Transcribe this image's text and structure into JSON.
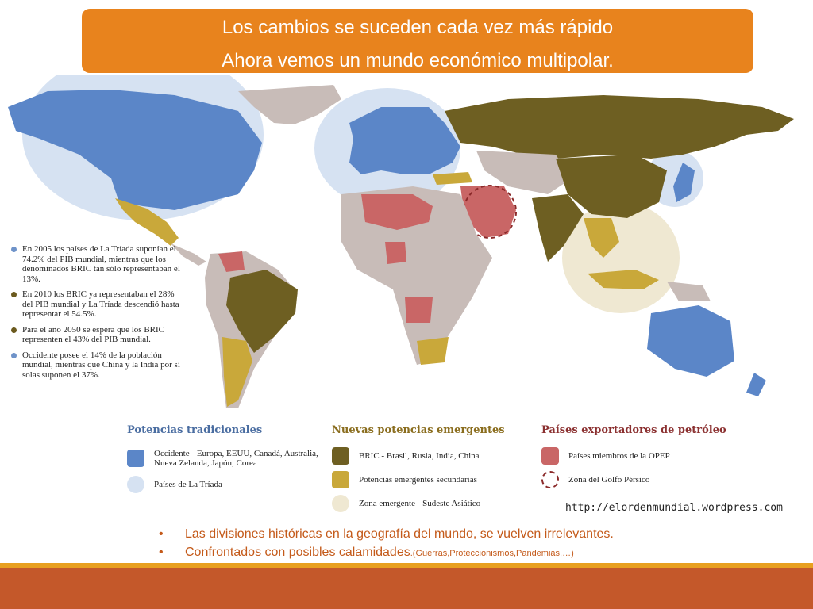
{
  "title": {
    "line1": "Los cambios se suceden cada vez más rápido",
    "line2": "Ahora vemos un mundo económico multipolar."
  },
  "notes": [
    {
      "text": "En 2005 los países de La Tríada suponían el 74.2% del PIB mundial, mientras que los denominados BRIC tan sólo representaban el 13%.",
      "color": "#6f93c9"
    },
    {
      "text": "En 2010 los BRIC ya representaban el 28% del PIB mundial y La Tríada descendió hasta representar el 54.5%.",
      "color": "#6b5a1e"
    },
    {
      "text": "Para el año 2050 se espera que los BRIC representen el 43% del PIB mundial.",
      "color": "#6b5a1e"
    },
    {
      "text": "Occidente posee el 14% de la población mundial, mientras que China y la India por sí solas suponen el 37%.",
      "color": "#6f93c9"
    }
  ],
  "legend": {
    "traditional": {
      "heading": "Potencias tradicionales",
      "items": [
        {
          "label": "Occidente - Europa, EEUU, Canadá, Australia, Nueva Zelanda, Japón, Corea",
          "color": "#5b86c8"
        },
        {
          "label": "Países de La Tríada",
          "color": "#d6e2f2"
        }
      ]
    },
    "emerging": {
      "heading": "Nuevas potencias emergentes",
      "items": [
        {
          "label": "BRIC - Brasil, Rusia, India, China",
          "color": "#6e5f22"
        },
        {
          "label": "Potencias emergentes secundarias",
          "color": "#c9a83a"
        },
        {
          "label": "Zona emergente - Sudeste Asiático",
          "color": "#efe8d2"
        }
      ]
    },
    "oil": {
      "heading": "Países exportadores de petróleo",
      "items": [
        {
          "label": "Países miembros de la OPEP",
          "color": "#c96666"
        },
        {
          "label": "Zona del Golfo Pérsico",
          "color": "#8b2a2a"
        }
      ]
    }
  },
  "source": "http://elordenmundial.wordpress.com",
  "bullets": [
    {
      "text": "Las divisiones históricas en la  geografía del mundo, se vuelven irrelevantes."
    },
    {
      "text": "Confrontados con posibles calamidades",
      "small": ".(Guerras,Proteccionismos,Pandemias,…)"
    }
  ],
  "colors": {
    "orange": "#e8831d",
    "western": "#5b86c8",
    "triad": "#d6e2f2",
    "bric": "#6e5f22",
    "secondary": "#c9a83a",
    "sea_zone": "#efe8d2",
    "opec": "#c96666",
    "other": "#c8bcb8"
  }
}
